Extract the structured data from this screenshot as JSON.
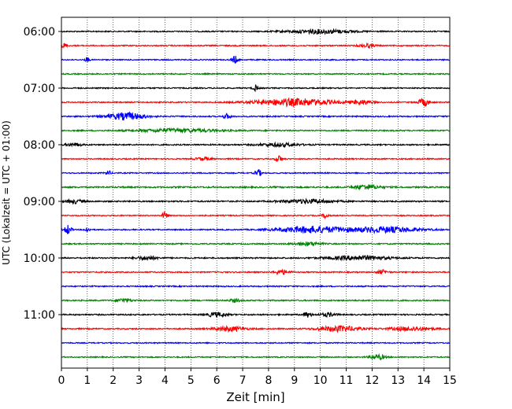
{
  "chart_data": {
    "type": "line",
    "title": "",
    "xlabel": "Zeit  [min]",
    "ylabel": "UTC (Lokalzeit = UTC + 01:00)",
    "xlim": [
      0,
      15
    ],
    "x_ticks": [
      "0",
      "1",
      "2",
      "3",
      "4",
      "5",
      "6",
      "7",
      "8",
      "9",
      "10",
      "11",
      "12",
      "13",
      "14",
      "15"
    ],
    "y_ticks": [
      "06:00",
      "07:00",
      "08:00",
      "09:00",
      "10:00",
      "11:00"
    ],
    "grid": "vertical dotted",
    "legend": "none",
    "trace_interval_min": 15,
    "start_time": "06:00",
    "colors": [
      "#000000",
      "#ff0000",
      "#0000ff",
      "#008000"
    ],
    "series": [
      {
        "label": "06:00",
        "color": "#000000",
        "noise": 0.12,
        "events": [
          [
            10.0,
            1.6,
            1.2
          ]
        ]
      },
      {
        "label": "06:15",
        "color": "#ff0000",
        "noise": 0.1,
        "events": [
          [
            0.1,
            1.8,
            0.1
          ],
          [
            11.8,
            1.5,
            0.3
          ]
        ]
      },
      {
        "label": "06:30",
        "color": "#0000ff",
        "noise": 0.08,
        "events": [
          [
            1.0,
            2.0,
            0.08
          ],
          [
            6.7,
            3.0,
            0.12
          ]
        ]
      },
      {
        "label": "06:45",
        "color": "#008000",
        "noise": 0.1,
        "events": []
      },
      {
        "label": "07:00",
        "color": "#000000",
        "noise": 0.1,
        "events": [
          [
            7.5,
            2.5,
            0.1
          ]
        ]
      },
      {
        "label": "07:15",
        "color": "#ff0000",
        "noise": 0.1,
        "events": [
          [
            9.0,
            2.8,
            1.5
          ],
          [
            11.6,
            1.6,
            0.4
          ],
          [
            14.0,
            3.0,
            0.2
          ]
        ]
      },
      {
        "label": "07:30",
        "color": "#0000ff",
        "noise": 0.15,
        "events": [
          [
            2.5,
            2.8,
            0.7
          ],
          [
            6.4,
            1.8,
            0.15
          ]
        ]
      },
      {
        "label": "07:45",
        "color": "#008000",
        "noise": 0.15,
        "events": [
          [
            4.5,
            1.3,
            1.5
          ]
        ]
      },
      {
        "label": "08:00",
        "color": "#000000",
        "noise": 0.15,
        "events": [
          [
            0.5,
            1.2,
            0.3
          ],
          [
            8.4,
            1.2,
            0.8
          ]
        ]
      },
      {
        "label": "08:15",
        "color": "#ff0000",
        "noise": 0.1,
        "events": [
          [
            8.4,
            2.8,
            0.12
          ],
          [
            5.5,
            1.3,
            0.3
          ]
        ]
      },
      {
        "label": "08:30",
        "color": "#0000ff",
        "noise": 0.1,
        "events": [
          [
            1.8,
            2.0,
            0.1
          ],
          [
            7.6,
            2.6,
            0.12
          ]
        ]
      },
      {
        "label": "08:45",
        "color": "#008000",
        "noise": 0.22,
        "events": [
          [
            11.8,
            1.7,
            0.5
          ]
        ]
      },
      {
        "label": "09:00",
        "color": "#000000",
        "noise": 0.18,
        "events": [
          [
            0.5,
            1.5,
            0.3
          ],
          [
            9.5,
            1.4,
            1.0
          ]
        ]
      },
      {
        "label": "09:15",
        "color": "#ff0000",
        "noise": 0.08,
        "events": [
          [
            4.0,
            3.0,
            0.1
          ],
          [
            10.2,
            2.0,
            0.12
          ]
        ]
      },
      {
        "label": "09:30",
        "color": "#0000ff",
        "noise": 0.1,
        "events": [
          [
            0.25,
            3.8,
            0.12
          ],
          [
            1.0,
            2.0,
            0.1
          ],
          [
            9.7,
            2.6,
            1.3
          ],
          [
            12.5,
            2.2,
            1.3
          ]
        ]
      },
      {
        "label": "09:45",
        "color": "#008000",
        "noise": 0.12,
        "events": [
          [
            9.5,
            1.4,
            0.5
          ]
        ]
      },
      {
        "label": "10:00",
        "color": "#000000",
        "noise": 0.16,
        "events": [
          [
            3.3,
            1.4,
            0.4
          ],
          [
            11.5,
            1.6,
            1.2
          ]
        ]
      },
      {
        "label": "10:15",
        "color": "#ff0000",
        "noise": 0.1,
        "events": [
          [
            8.5,
            1.8,
            0.3
          ],
          [
            12.4,
            1.6,
            0.2
          ]
        ]
      },
      {
        "label": "10:30",
        "color": "#0000ff",
        "noise": 0.12,
        "events": []
      },
      {
        "label": "10:45",
        "color": "#008000",
        "noise": 0.15,
        "events": [
          [
            2.4,
            1.4,
            0.3
          ],
          [
            6.7,
            1.2,
            0.2
          ]
        ]
      },
      {
        "label": "11:00",
        "color": "#000000",
        "noise": 0.16,
        "events": [
          [
            6.0,
            1.6,
            0.4
          ],
          [
            9.5,
            2.0,
            0.15
          ],
          [
            10.3,
            1.4,
            0.3
          ]
        ]
      },
      {
        "label": "11:15",
        "color": "#ff0000",
        "noise": 0.12,
        "events": [
          [
            6.5,
            1.8,
            0.6
          ],
          [
            10.7,
            2.2,
            0.8
          ],
          [
            13.5,
            1.5,
            0.8
          ]
        ]
      },
      {
        "label": "11:30",
        "color": "#0000ff",
        "noise": 0.08,
        "events": []
      },
      {
        "label": "11:45",
        "color": "#008000",
        "noise": 0.08,
        "events": [
          [
            12.2,
            2.0,
            0.3
          ]
        ]
      }
    ]
  }
}
